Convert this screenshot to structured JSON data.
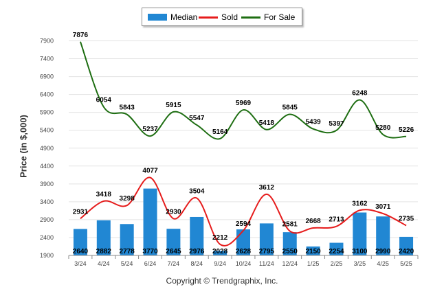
{
  "legend": {
    "median": "Median",
    "sold": "Sold",
    "forsale": "For Sale"
  },
  "copyright": "Copyright © Trendgraphix, Inc.",
  "colors": {
    "median": "#2187d3",
    "sold": "#e61c1c",
    "forsale": "#1e6e12",
    "grid": "#e3e3e3",
    "axis": "#555555"
  },
  "chart_data": {
    "type": "bar",
    "ylabel": "Price (in $,000)",
    "xlabel": "",
    "ylim": [
      1900,
      7900
    ],
    "yticks": [
      1900,
      2400,
      2900,
      3400,
      3900,
      4400,
      4900,
      5400,
      5900,
      6400,
      6900,
      7400,
      7900
    ],
    "grid": true,
    "legend_position": "top-center",
    "categories": [
      "3/24",
      "4/24",
      "5/24",
      "6/24",
      "7/24",
      "8/24",
      "9/24",
      "10/24",
      "11/24",
      "12/24",
      "1/25",
      "2/25",
      "3/25",
      "4/25",
      "5/25"
    ],
    "series": [
      {
        "name": "Median",
        "type": "bar",
        "values": [
          2640,
          2882,
          2778,
          3770,
          2645,
          2976,
          2028,
          2628,
          2795,
          2550,
          2150,
          2254,
          3100,
          2990,
          2420
        ]
      },
      {
        "name": "Sold",
        "type": "line",
        "values": [
          2931,
          3418,
          3298,
          4077,
          2930,
          3504,
          2212,
          2594,
          3612,
          2581,
          2668,
          2713,
          3162,
          3071,
          2735
        ]
      },
      {
        "name": "For Sale",
        "type": "line",
        "values": [
          7876,
          6054,
          5843,
          5237,
          5915,
          5547,
          5164,
          5969,
          5418,
          5845,
          5439,
          5397,
          6248,
          5280,
          5226
        ]
      }
    ]
  }
}
